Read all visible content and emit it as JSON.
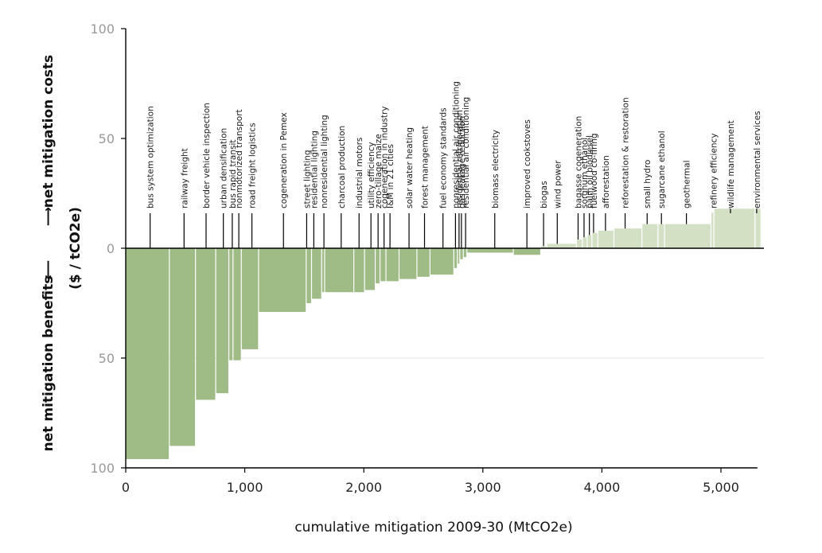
{
  "chart_data": {
    "type": "bar",
    "title": "",
    "xlabel": "cumulative mitigation 2009-30 (MtCO2e)",
    "ylabel_left": "net mitigation benefits",
    "ylabel_right": "net mitigation costs",
    "ylabel_unit": "($ / tCO2e)",
    "x_ticks": [
      {
        "value": 0,
        "label": "0"
      },
      {
        "value": 1000,
        "label": "1,000"
      },
      {
        "value": 2000,
        "label": "2,000"
      },
      {
        "value": 3000,
        "label": "3,000"
      },
      {
        "value": 4000,
        "label": "4,000"
      },
      {
        "value": 5000,
        "label": "5,000"
      }
    ],
    "y_ticks": [
      {
        "value": 100,
        "label": "100"
      },
      {
        "value": 50,
        "label": "50"
      },
      {
        "value": 0,
        "label": "0"
      },
      {
        "value": -50,
        "label": "50"
      },
      {
        "value": -100,
        "label": "100"
      }
    ],
    "xlim": [
      0,
      5400
    ],
    "ylim": [
      -100,
      100
    ],
    "grid": "horizontal at -50",
    "colors": {
      "benefit": "#9fbb86",
      "cost": "#d3e0c4",
      "zero_line": "#000000",
      "tick_text": "#9a9a9a"
    },
    "bars": [
      {
        "label": "bus system optimization",
        "x_start": 0,
        "x_end": 370,
        "value": -96,
        "label_x": 205
      },
      {
        "label": "railway freight",
        "x_start": 370,
        "x_end": 590,
        "value": -90,
        "label_x": 490
      },
      {
        "label": "border vehicle inspection",
        "x_start": 590,
        "x_end": 760,
        "value": -69,
        "label_x": 675
      },
      {
        "label": "urban densification",
        "x_start": 760,
        "x_end": 870,
        "value": -66,
        "label_x": 820
      },
      {
        "label": "bus rapid transit",
        "x_start": 870,
        "x_end": 905,
        "value": -51,
        "label_x": 895
      },
      {
        "label": "nonmotorized transport",
        "x_start": 905,
        "x_end": 975,
        "value": -51,
        "label_x": 950
      },
      {
        "label": "road freight logistics",
        "x_start": 975,
        "x_end": 1120,
        "value": -46,
        "label_x": 1060
      },
      {
        "label": "cogeneration in Pemex",
        "x_start": 1120,
        "x_end": 1520,
        "value": -29,
        "label_x": 1325
      },
      {
        "label": "street lighting",
        "x_start": 1520,
        "x_end": 1565,
        "value": -25,
        "label_x": 1520
      },
      {
        "label": "residential lighting",
        "x_start": 1565,
        "x_end": 1650,
        "value": -23,
        "label_x": 1580
      },
      {
        "label": "nonresidential lighting",
        "x_start": 1650,
        "x_end": 1675,
        "value": -20,
        "label_x": 1665
      },
      {
        "label": "charcoal production",
        "x_start": 1675,
        "x_end": 1920,
        "value": -20,
        "label_x": 1810
      },
      {
        "label": "industrial motors",
        "x_start": 1920,
        "x_end": 2010,
        "value": -20,
        "label_x": 1960
      },
      {
        "label": "utility efficiency",
        "x_start": 2010,
        "x_end": 2100,
        "value": -19,
        "label_x": 2060
      },
      {
        "label": "zero-tillage maize",
        "x_start": 2100,
        "x_end": 2140,
        "value": -16,
        "label_x": 2120
      },
      {
        "label": "cogeneration in industry",
        "x_start": 2140,
        "x_end": 2190,
        "value": -15,
        "label_x": 2170
      },
      {
        "label": "I&M in 21 cities",
        "x_start": 2190,
        "x_end": 2300,
        "value": -15,
        "label_x": 2220
      },
      {
        "label": "solar water heating",
        "x_start": 2300,
        "x_end": 2450,
        "value": -14,
        "label_x": 2380
      },
      {
        "label": "forest management",
        "x_start": 2450,
        "x_end": 2560,
        "value": -13,
        "label_x": 2510
      },
      {
        "label": "fuel economy standards",
        "x_start": 2560,
        "x_end": 2760,
        "value": -12,
        "label_x": 2665
      },
      {
        "label": "nonresidential air conditioning",
        "x_start": 2760,
        "x_end": 2790,
        "value": -9,
        "label_x": 2770
      },
      {
        "label": "residential refrigeration",
        "x_start": 2790,
        "x_end": 2810,
        "value": -7,
        "label_x": 2800
      },
      {
        "label": "gas leakage reduction",
        "x_start": 2810,
        "x_end": 2840,
        "value": -5,
        "label_x": 2820
      },
      {
        "label": "residential air conditioning",
        "x_start": 2840,
        "x_end": 2870,
        "value": -4,
        "label_x": 2855
      },
      {
        "label": "biomass electricity",
        "x_start": 2870,
        "x_end": 3260,
        "value": -2,
        "label_x": 3100
      },
      {
        "label": "improved cookstoves",
        "x_start": 3260,
        "x_end": 3490,
        "value": -3,
        "label_x": 3370
      },
      {
        "label": "biogas",
        "x_start": 3490,
        "x_end": 3540,
        "value": 1,
        "label_x": 3510
      },
      {
        "label": "wind power",
        "x_start": 3540,
        "x_end": 3790,
        "value": 2,
        "label_x": 3625
      },
      {
        "label": "bagasse cogeneration",
        "x_start": 3790,
        "x_end": 3840,
        "value": 4,
        "label_x": 3800
      },
      {
        "label": "sorghum ethanol",
        "x_start": 3840,
        "x_end": 3880,
        "value": 5,
        "label_x": 3850
      },
      {
        "label": "palm oil biodiesel",
        "x_start": 3880,
        "x_end": 3920,
        "value": 6,
        "label_x": 3895
      },
      {
        "label": "fuelwood co-firing",
        "x_start": 3920,
        "x_end": 3970,
        "value": 7,
        "label_x": 3930
      },
      {
        "label": "afforestation",
        "x_start": 3970,
        "x_end": 4105,
        "value": 8,
        "label_x": 4030
      },
      {
        "label": "reforestation & restoration",
        "x_start": 4105,
        "x_end": 4340,
        "value": 9,
        "label_x": 4195
      },
      {
        "label": "small hydro",
        "x_start": 4340,
        "x_end": 4475,
        "value": 11,
        "label_x": 4380
      },
      {
        "label": "sugarcane ethanol",
        "x_start": 4475,
        "x_end": 4530,
        "value": 11,
        "label_x": 4500
      },
      {
        "label": "geothermal",
        "x_start": 4530,
        "x_end": 4920,
        "value": 11,
        "label_x": 4710
      },
      {
        "label": "refinery efficiency",
        "x_start": 4920,
        "x_end": 4945,
        "value": 16,
        "label_x": 4935
      },
      {
        "label": "wildlife management",
        "x_start": 4945,
        "x_end": 5290,
        "value": 18,
        "label_x": 5080
      },
      {
        "label": "environmental services",
        "x_start": 5290,
        "x_end": 5340,
        "value": 18,
        "label_x": 5300
      }
    ]
  }
}
